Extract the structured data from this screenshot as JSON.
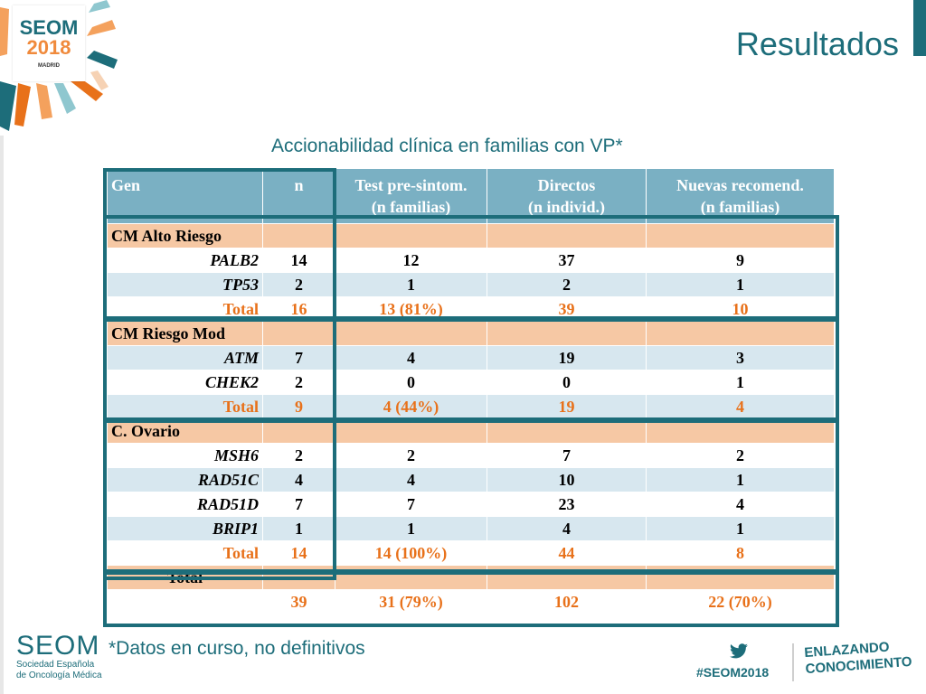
{
  "header": {
    "logo": {
      "brand": "SEOM",
      "year": "2018",
      "city": "MADRID"
    },
    "title": "Resultados"
  },
  "subtitle": "Accionabilidad clínica en familias con VP*",
  "table": {
    "columns": [
      {
        "line1": "Gen",
        "line2": ""
      },
      {
        "line1": "n",
        "line2": ""
      },
      {
        "line1": "Test pre-sintom.",
        "line2": "(n familias)"
      },
      {
        "line1": "Directos",
        "line2": "(n individ.)"
      },
      {
        "line1": "Nuevas recomend.",
        "line2": "(n familias)"
      }
    ],
    "groups": [
      {
        "label": "CM Alto Riesgo",
        "rows": [
          {
            "gene": "PALB2",
            "n": "14",
            "test": "12",
            "directos": "37",
            "nuevas": "9"
          },
          {
            "gene": "TP53",
            "n": "2",
            "test": "1",
            "directos": "2",
            "nuevas": "1"
          }
        ],
        "total": {
          "label": "Total",
          "n": "16",
          "test": "13 (81%)",
          "directos": "39",
          "nuevas": "10"
        }
      },
      {
        "label": "CM Riesgo Mod",
        "rows": [
          {
            "gene": "ATM",
            "n": "7",
            "test": "4",
            "directos": "19",
            "nuevas": "3"
          },
          {
            "gene": "CHEK2",
            "n": "2",
            "test": "0",
            "directos": "0",
            "nuevas": "1"
          }
        ],
        "total": {
          "label": "Total",
          "n": "9",
          "test": "4 (44%)",
          "directos": "19",
          "nuevas": "4"
        }
      },
      {
        "label": "C. Ovario",
        "rows": [
          {
            "gene": "MSH6",
            "n": "2",
            "test": "2",
            "directos": "7",
            "nuevas": "2"
          },
          {
            "gene": "RAD51C",
            "n": "4",
            "test": "4",
            "directos": "10",
            "nuevas": "1"
          },
          {
            "gene": "RAD51D",
            "n": "7",
            "test": "7",
            "directos": "23",
            "nuevas": "4"
          },
          {
            "gene": "BRIP1",
            "n": "1",
            "test": "1",
            "directos": "4",
            "nuevas": "1"
          }
        ],
        "total": {
          "label": "Total",
          "n": "14",
          "test": "14 (100%)",
          "directos": "44",
          "nuevas": "8"
        }
      }
    ],
    "grand_total": {
      "label": "Total",
      "n": "39",
      "test": "31 (79%)",
      "directos": "102",
      "nuevas": "22 (70%)"
    }
  },
  "footnote": "*Datos en curso, no definitivos",
  "footer": {
    "org_name": "SEOM",
    "org_line1": "Sociedad Española",
    "org_line2": "de Oncología Médica",
    "hashtag": "#SEOM2018",
    "slogan_line1": "ENLAZANDO",
    "slogan_line2": "CONOCIMIENTO",
    "twitter_icon": "twitter-bird-icon"
  },
  "colors": {
    "accent": "#1d6d7a",
    "orange": "#e8711a",
    "header_blue": "#7ab0c3",
    "row_orange": "#f6c8a4",
    "row_blue": "#d7e7ef"
  }
}
